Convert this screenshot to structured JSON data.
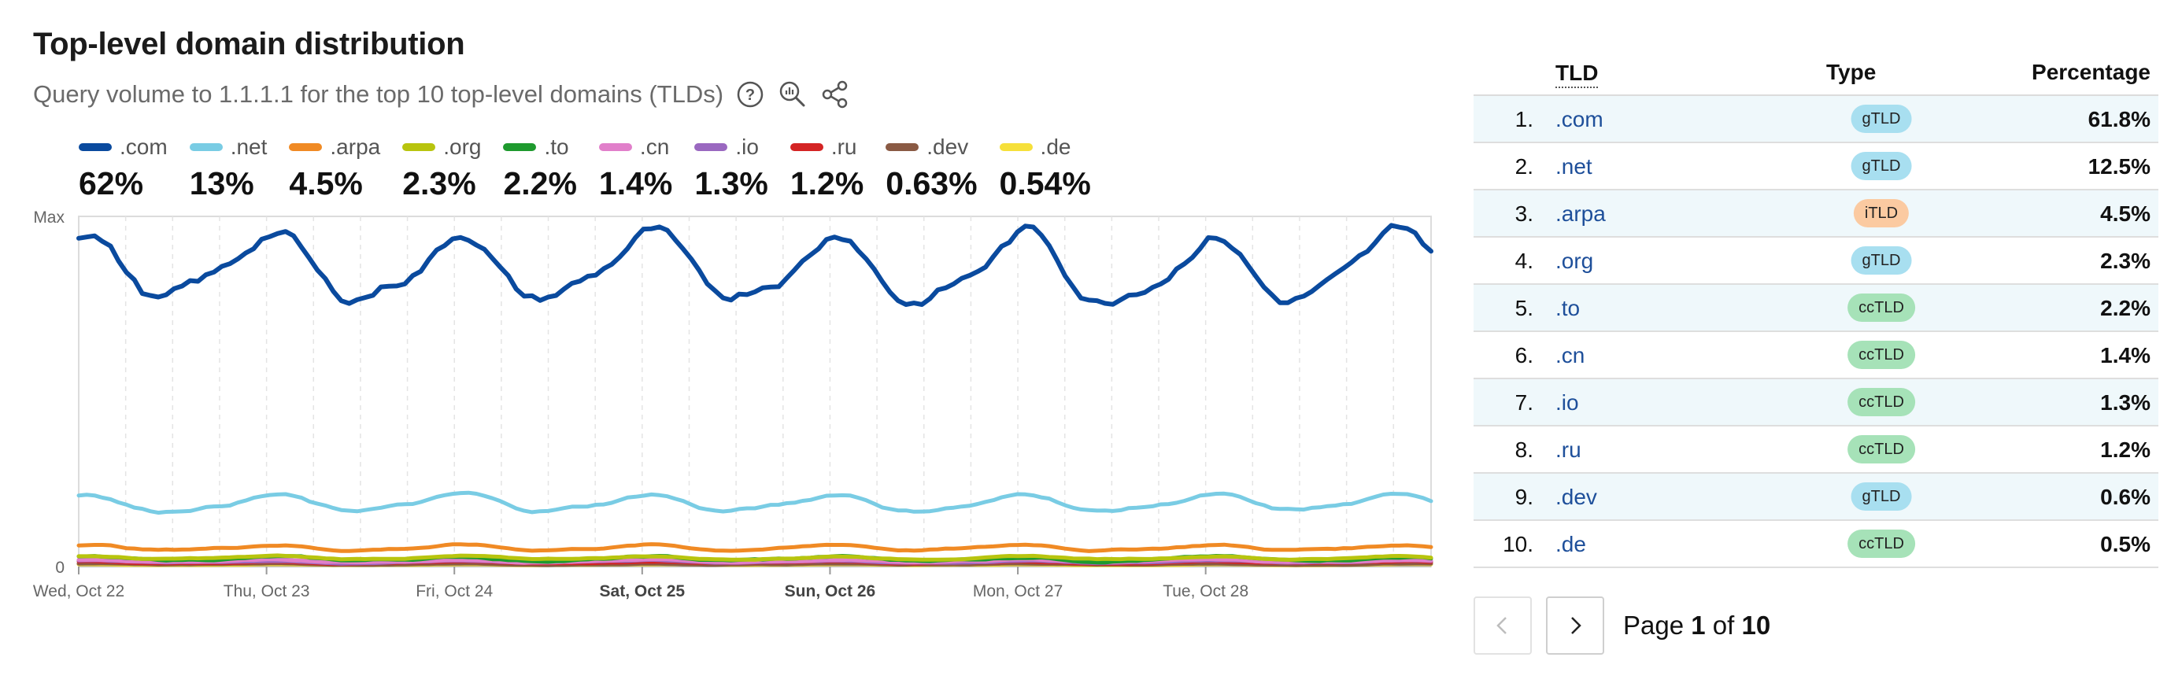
{
  "header": {
    "title": "Top-level domain distribution",
    "subtitle": "Query volume to 1.1.1.1 for the top 10 top-level domains (TLDs)"
  },
  "icons": [
    "help-icon",
    "chart-explore-icon",
    "share-icon"
  ],
  "chart_data": {
    "type": "line",
    "title": "Top-level domain distribution",
    "y_tick_labels": [
      "Max",
      "0"
    ],
    "x_tick_labels": [
      {
        "label": "Wed, Oct 22",
        "bold": false
      },
      {
        "label": "Thu, Oct 23",
        "bold": false
      },
      {
        "label": "Fri, Oct 24",
        "bold": false
      },
      {
        "label": "Sat, Oct 25",
        "bold": true
      },
      {
        "label": "Sun, Oct 26",
        "bold": true
      },
      {
        "label": "Mon, Oct 27",
        "bold": false
      },
      {
        "label": "Tue, Oct 28",
        "bold": false
      }
    ],
    "x_range_days": [
      0,
      7.2
    ],
    "ylim": [
      0,
      100
    ],
    "grid": "vertical dashed",
    "legend": "top",
    "series": [
      {
        "name": ".com",
        "share": "62%",
        "color": "#0a4a9e",
        "base": 85,
        "amp": 9,
        "noise": 2.5
      },
      {
        "name": ".net",
        "share": "13%",
        "color": "#79cce4",
        "base": 18,
        "amp": 2.2,
        "noise": 0.6
      },
      {
        "name": ".arpa",
        "share": "4.5%",
        "color": "#f08a24",
        "base": 5.4,
        "amp": 0.7,
        "noise": 0.3
      },
      {
        "name": ".org",
        "share": "2.3%",
        "color": "#b8c40e",
        "base": 2.5,
        "amp": 0.4,
        "noise": 0.2
      },
      {
        "name": ".to",
        "share": "2.2%",
        "color": "#1e9a2e",
        "base": 2.2,
        "amp": 0.5,
        "noise": 0.35
      },
      {
        "name": ".cn",
        "share": "1.4%",
        "color": "#e17fca",
        "base": 1.6,
        "amp": 0.3,
        "noise": 0.2
      },
      {
        "name": ".io",
        "share": "1.3%",
        "color": "#9a68c0",
        "base": 1.4,
        "amp": 0.3,
        "noise": 0.15
      },
      {
        "name": ".ru",
        "share": "1.2%",
        "color": "#d42424",
        "base": 1.2,
        "amp": 0.25,
        "noise": 0.15
      },
      {
        "name": ".dev",
        "share": "0.63%",
        "color": "#8a5a44",
        "base": 0.7,
        "amp": 0.15,
        "noise": 0.1
      },
      {
        "name": ".de",
        "share": "0.54%",
        "color": "#f6e03a",
        "base": 0.55,
        "amp": 0.1,
        "noise": 0.08
      }
    ]
  },
  "table": {
    "headers": {
      "tld": "TLD",
      "type": "Type",
      "percentage": "Percentage"
    },
    "type_colors": {
      "gTLD": "#a8dff0",
      "iTLD": "#fbcaa1",
      "ccTLD": "#a6e2b8"
    },
    "rows": [
      {
        "rank": "1.",
        "tld": ".com",
        "type": "gTLD",
        "pct": "61.8%"
      },
      {
        "rank": "2.",
        "tld": ".net",
        "type": "gTLD",
        "pct": "12.5%"
      },
      {
        "rank": "3.",
        "tld": ".arpa",
        "type": "iTLD",
        "pct": "4.5%"
      },
      {
        "rank": "4.",
        "tld": ".org",
        "type": "gTLD",
        "pct": "2.3%"
      },
      {
        "rank": "5.",
        "tld": ".to",
        "type": "ccTLD",
        "pct": "2.2%"
      },
      {
        "rank": "6.",
        "tld": ".cn",
        "type": "ccTLD",
        "pct": "1.4%"
      },
      {
        "rank": "7.",
        "tld": ".io",
        "type": "ccTLD",
        "pct": "1.3%"
      },
      {
        "rank": "8.",
        "tld": ".ru",
        "type": "ccTLD",
        "pct": "1.2%"
      },
      {
        "rank": "9.",
        "tld": ".dev",
        "type": "gTLD",
        "pct": "0.6%"
      },
      {
        "rank": "10.",
        "tld": ".de",
        "type": "ccTLD",
        "pct": "0.5%"
      }
    ]
  },
  "pagination": {
    "prefix": "Page",
    "current": "1",
    "separator": "of",
    "total": "10"
  }
}
